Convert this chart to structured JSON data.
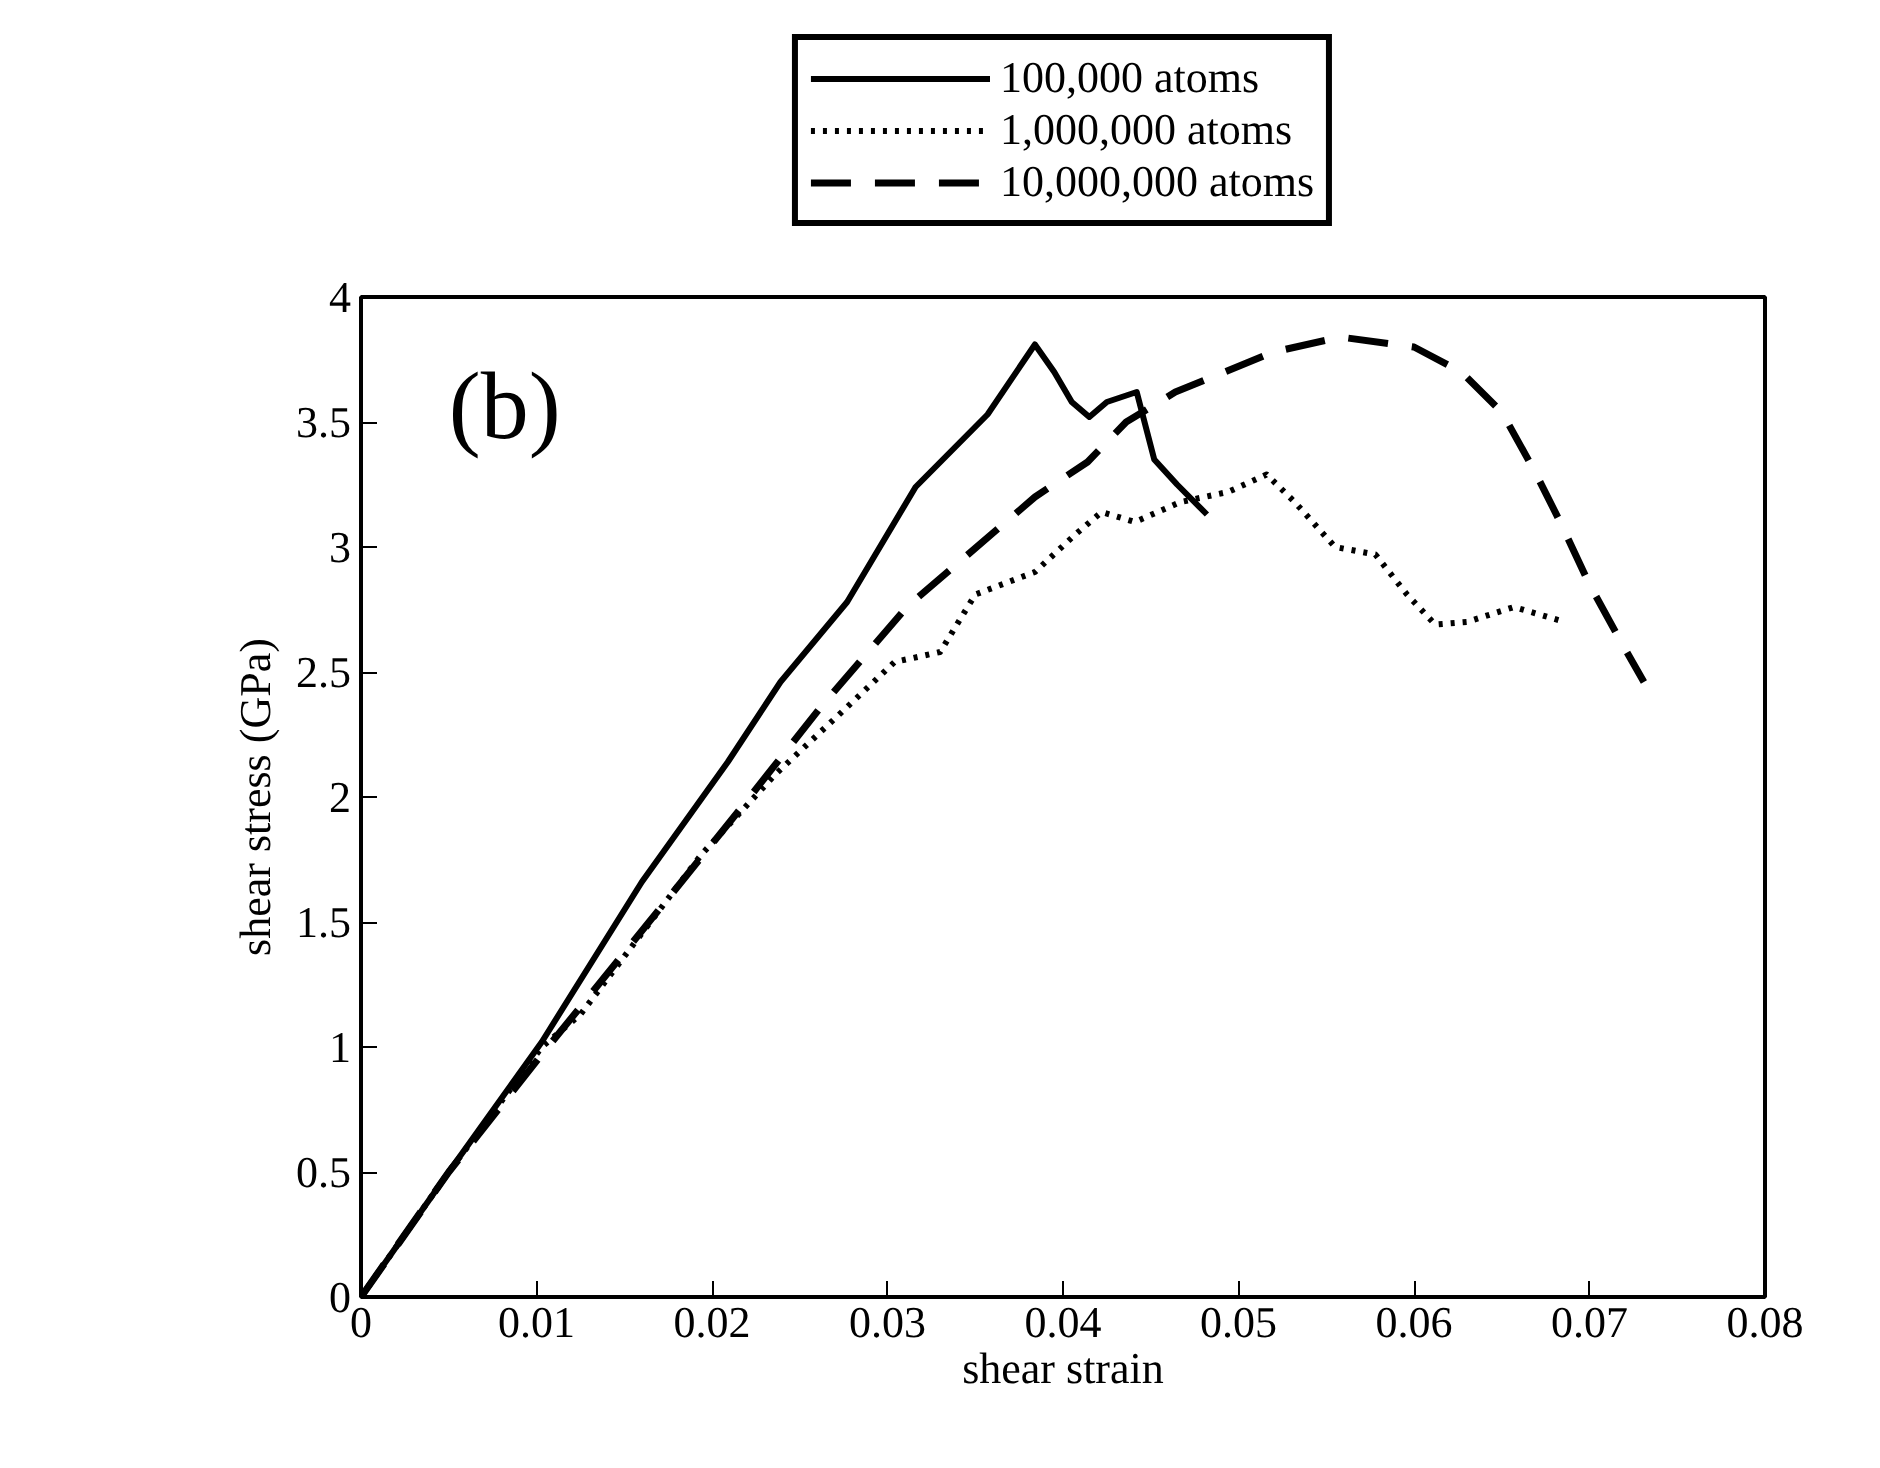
{
  "chart_data": {
    "type": "line",
    "xlabel": "shear strain",
    "ylabel": "shear stress (GPa)",
    "annotations": [
      "(b)"
    ],
    "xlim": [
      0,
      0.08
    ],
    "ylim": [
      0,
      4
    ],
    "xticks": [
      0,
      0.01,
      0.02,
      0.03,
      0.04,
      0.05,
      0.06,
      0.07,
      0.08
    ],
    "yticks": [
      0,
      0.5,
      1,
      1.5,
      2,
      2.5,
      3,
      3.5,
      4
    ],
    "grid": false,
    "legend": "top",
    "marker": "none",
    "series": [
      {
        "name": "100,000 atoms",
        "color": "#000000",
        "line_style": "solid",
        "x": [
          0,
          0.005,
          0.0103,
          0.016,
          0.0209,
          0.0239,
          0.0277,
          0.0316,
          0.0357,
          0.0384,
          0.0395,
          0.0405,
          0.0415,
          0.0425,
          0.0442,
          0.0452,
          0.0465,
          0.0482
        ],
        "values": [
          0,
          0.5,
          1.02,
          1.66,
          2.14,
          2.46,
          2.78,
          3.24,
          3.53,
          3.81,
          3.7,
          3.58,
          3.52,
          3.58,
          3.62,
          3.35,
          3.25,
          3.13
        ]
      },
      {
        "name": "1,000,000 atoms",
        "color": "#000000",
        "line_style": "dotted",
        "x": [
          0,
          0.005,
          0.0103,
          0.0125,
          0.0194,
          0.0236,
          0.0277,
          0.0304,
          0.033,
          0.035,
          0.0384,
          0.0407,
          0.0422,
          0.0441,
          0.0467,
          0.0494,
          0.0516,
          0.0532,
          0.0555,
          0.0578,
          0.0596,
          0.0612,
          0.063,
          0.0657,
          0.0686
        ],
        "values": [
          0,
          0.5,
          1.0,
          1.13,
          1.77,
          2.09,
          2.36,
          2.54,
          2.58,
          2.81,
          2.9,
          3.05,
          3.14,
          3.1,
          3.18,
          3.22,
          3.29,
          3.18,
          3.0,
          2.97,
          2.81,
          2.69,
          2.7,
          2.76,
          2.7
        ]
      },
      {
        "name": "10,000,000 atoms",
        "color": "#000000",
        "line_style": "dashed",
        "x": [
          0,
          0.005,
          0.0103,
          0.0125,
          0.0171,
          0.0217,
          0.0262,
          0.0311,
          0.0384,
          0.0414,
          0.0436,
          0.0464,
          0.052,
          0.0558,
          0.06,
          0.0627,
          0.065,
          0.0669,
          0.0684,
          0.07,
          0.0718,
          0.0731
        ],
        "values": [
          0,
          0.5,
          0.97,
          1.16,
          1.56,
          1.96,
          2.36,
          2.76,
          3.2,
          3.34,
          3.5,
          3.62,
          3.78,
          3.84,
          3.8,
          3.7,
          3.54,
          3.3,
          3.09,
          2.85,
          2.62,
          2.46
        ]
      }
    ]
  }
}
